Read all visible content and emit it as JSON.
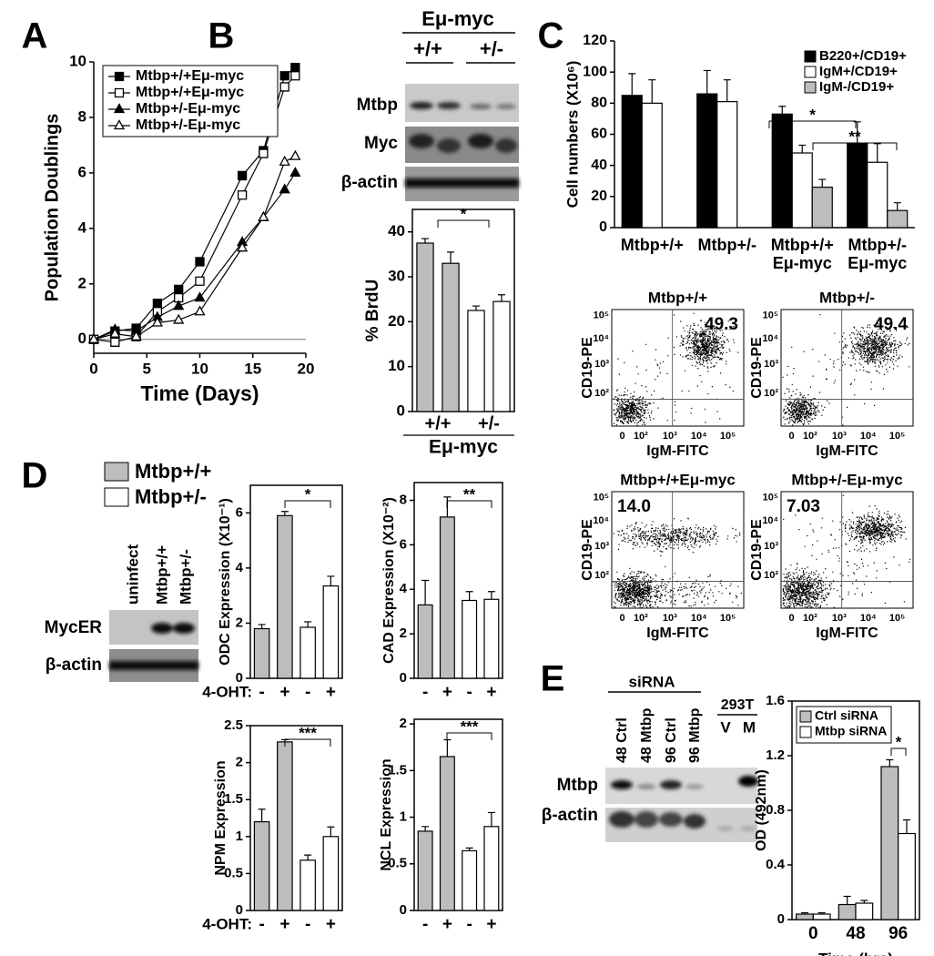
{
  "panel_labels": [
    "A",
    "B",
    "C",
    "D",
    "E"
  ],
  "blots": {
    "B": {
      "header": "Eμ-myc",
      "lanes": [
        "+/+",
        "+/-"
      ],
      "rows": [
        "Mtbp",
        "Myc",
        "β-actin"
      ]
    },
    "D": {
      "lanes": [
        "uninfect",
        "Mtbp+/+",
        "Mtbp+/-"
      ],
      "rows": [
        "MycER",
        "β-actin"
      ]
    },
    "E": {
      "header": "siRNA",
      "lanes": [
        "48 Ctrl",
        "48 Mtbp",
        "96 Ctrl",
        "96 Mtbp"
      ],
      "control_header": "293T",
      "control_lanes": [
        "V",
        "M"
      ],
      "rows": [
        "Mtbp",
        "β-actin"
      ]
    }
  },
  "d_legend": [
    {
      "name": "Mtbp+/+",
      "color": "#bdbdbd"
    },
    {
      "name": "Mtbp+/-",
      "color": "#ffffff"
    }
  ],
  "flow": {
    "y_label": "CD19-PE",
    "x_label": "IgM-FITC",
    "x_ticks": [
      "0",
      "10²",
      "10³",
      "10⁴",
      "10⁵"
    ],
    "y_ticks": [
      "10²",
      "10³",
      "10⁴",
      "10⁵"
    ],
    "plots": [
      {
        "title": "Mtbp+/+",
        "percent": "49.3"
      },
      {
        "title": "Mtbp+/-",
        "percent": "49.4"
      },
      {
        "title": "Mtbp+/+Eμ-myc",
        "percent": "14.0"
      },
      {
        "title": "Mtbp+/-Eμ-myc",
        "percent": "7.03"
      }
    ]
  },
  "chart_data": [
    {
      "type": "line",
      "xlabel": "Time (Days)",
      "ylabel": "Population Doublings",
      "x": [
        0,
        2,
        4,
        6,
        8,
        10,
        14,
        16,
        18,
        19
      ],
      "xlim": [
        0,
        20
      ],
      "xticks": [
        0,
        5,
        10,
        15,
        20
      ],
      "ylim": [
        -0.5,
        10
      ],
      "yticks": [
        0,
        2,
        4,
        6,
        8,
        10
      ],
      "zero_line": true,
      "frame": "axes",
      "legend": "upper left",
      "series": [
        {
          "name": "Mtbp+/+Eμ-myc",
          "color": "#000000",
          "marker": "square",
          "filled": true,
          "values": [
            0,
            0.3,
            0.4,
            1.3,
            1.8,
            2.8,
            5.9,
            6.8,
            9.5,
            9.8
          ]
        },
        {
          "name": "Mtbp+/+Eμ-myc",
          "color": "#000000",
          "marker": "square",
          "filled": false,
          "values": [
            0,
            -0.1,
            0.1,
            1.0,
            1.5,
            2.1,
            5.2,
            6.7,
            9.1,
            9.5
          ]
        },
        {
          "name": "Mtbp+/-Eμ-myc",
          "color": "#000000",
          "marker": "triangle",
          "filled": true,
          "values": [
            0,
            0.35,
            0.3,
            0.8,
            1.2,
            1.5,
            3.5,
            4.4,
            5.4,
            6.0
          ]
        },
        {
          "name": "Mtbp+/-Eμ-myc",
          "color": "#000000",
          "marker": "triangle",
          "filled": false,
          "values": [
            0,
            0.2,
            0.1,
            0.6,
            0.7,
            1.0,
            3.3,
            4.4,
            6.4,
            6.6
          ]
        }
      ]
    },
    {
      "type": "bar",
      "ylabel": "% BrdU",
      "categories": [
        null,
        null,
        null,
        null
      ],
      "values": [
        37.5,
        33,
        22.5,
        24.5
      ],
      "errors": [
        1,
        2.5,
        1,
        1.5
      ],
      "colors": [
        "#bdbdbd",
        "#bdbdbd",
        "#ffffff",
        "#ffffff"
      ],
      "ylim": [
        0,
        45
      ],
      "yticks": [
        0,
        10,
        20,
        30,
        40
      ],
      "frame": "box",
      "groups": [
        "+/+",
        "+/-"
      ],
      "group_title": "Eμ-myc",
      "annotations": [
        "*"
      ]
    },
    {
      "type": "bar",
      "ylabel": "Cell numbers (X10⁶)",
      "categories": [
        "Mtbp+/+",
        "Mtbp+/-",
        "Mtbp+/+",
        "Mtbp+/-"
      ],
      "category_sublabels": [
        null,
        null,
        "Eμ-myc",
        "Eμ-myc"
      ],
      "series": [
        {
          "name": "B220+/CD19+",
          "color": "#000000",
          "values": [
            85,
            86,
            73,
            54
          ],
          "errors": [
            14,
            15,
            5,
            14
          ]
        },
        {
          "name": "IgM+/CD19+",
          "color": "#ffffff",
          "values": [
            80,
            81,
            48,
            42
          ],
          "errors": [
            15,
            14,
            5,
            12
          ]
        },
        {
          "name": "IgM-/CD19+",
          "color": "#bdbdbd",
          "values": [
            null,
            null,
            26,
            11
          ],
          "errors": [
            null,
            null,
            5,
            5
          ]
        }
      ],
      "ylim": [
        0,
        120
      ],
      "yticks": [
        0,
        20,
        40,
        60,
        80,
        100,
        120
      ],
      "frame": "axes",
      "legend": "upper right",
      "annotations": [
        "*",
        "**"
      ]
    },
    {
      "type": "bar",
      "ylabel": "ODC Expression (X10⁻¹)",
      "categories": [
        "-",
        "+",
        "-",
        "+"
      ],
      "x_prefix": "4-OHT:",
      "values": [
        1.8,
        5.9,
        1.85,
        3.35
      ],
      "errors": [
        0.15,
        0.15,
        0.2,
        0.35
      ],
      "colors": [
        "#bdbdbd",
        "#bdbdbd",
        "#ffffff",
        "#ffffff"
      ],
      "ylim": [
        0,
        7
      ],
      "yticks": [
        0,
        2,
        4,
        6
      ],
      "frame": "box",
      "annotations": [
        "*"
      ]
    },
    {
      "type": "bar",
      "ylabel": "CAD Expression (X10⁻²)",
      "categories": [
        "-",
        "+",
        "-",
        "+"
      ],
      "values": [
        3.3,
        7.25,
        3.5,
        3.55
      ],
      "errors": [
        1.1,
        0.9,
        0.4,
        0.35
      ],
      "colors": [
        "#bdbdbd",
        "#bdbdbd",
        "#ffffff",
        "#ffffff"
      ],
      "ylim": [
        0,
        8.8
      ],
      "yticks": [
        0,
        2,
        4,
        6,
        8
      ],
      "frame": "box",
      "annotations": [
        "**"
      ]
    },
    {
      "type": "bar",
      "ylabel": "NPM Expression",
      "categories": [
        "-",
        "+",
        "-",
        "+"
      ],
      "x_prefix": "4-OHT:",
      "values": [
        1.2,
        2.28,
        0.68,
        1.0
      ],
      "errors": [
        0.17,
        0.03,
        0.07,
        0.13
      ],
      "colors": [
        "#bdbdbd",
        "#bdbdbd",
        "#ffffff",
        "#ffffff"
      ],
      "ylim": [
        0,
        2.5
      ],
      "yticks": [
        0,
        0.5,
        1,
        1.5,
        2,
        2.5
      ],
      "frame": "box",
      "annotations": [
        "***"
      ]
    },
    {
      "type": "bar",
      "ylabel": "NCL Expression",
      "categories": [
        "-",
        "+",
        "-",
        "+"
      ],
      "values": [
        0.85,
        1.65,
        0.64,
        0.9
      ],
      "errors": [
        0.05,
        0.18,
        0.03,
        0.15
      ],
      "colors": [
        "#bdbdbd",
        "#bdbdbd",
        "#ffffff",
        "#ffffff"
      ],
      "ylim": [
        0,
        2.05
      ],
      "yticks": [
        0,
        0.5,
        1,
        1.5,
        2
      ],
      "frame": "box",
      "annotations": [
        "***"
      ]
    },
    {
      "type": "bar",
      "xlabel": "Time (hrs)",
      "ylabel": "OD (492nm)",
      "categories": [
        "0",
        "48",
        "96"
      ],
      "series": [
        {
          "name": "Ctrl siRNA",
          "color": "#bdbdbd",
          "values": [
            0.04,
            0.11,
            1.12
          ],
          "errors": [
            0.01,
            0.06,
            0.05
          ]
        },
        {
          "name": "Mtbp siRNA",
          "color": "#ffffff",
          "values": [
            0.04,
            0.12,
            0.63
          ],
          "errors": [
            0.01,
            0.02,
            0.1
          ]
        }
      ],
      "ylim": [
        0,
        1.6
      ],
      "yticks": [
        0,
        0.4,
        0.8,
        1.2,
        1.6
      ],
      "frame": "box",
      "legend": "upper left",
      "annotations": [
        "*"
      ]
    }
  ]
}
